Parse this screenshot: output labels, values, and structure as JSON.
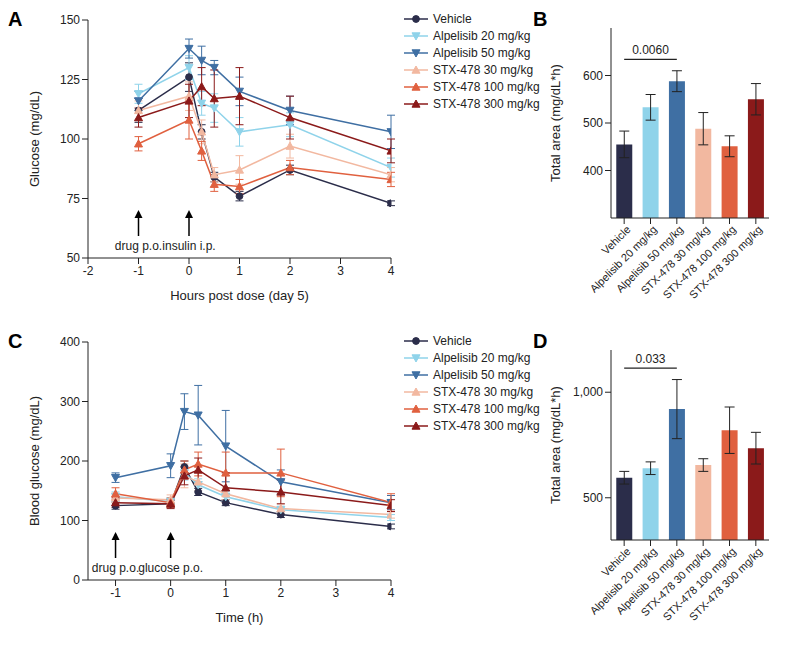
{
  "chart_data": [
    {
      "type": "line",
      "title": "A",
      "xlabel": "Hours post dose (day 5)",
      "ylabel": "Glucose (mg/dL)",
      "x": [
        -1,
        0,
        0.25,
        0.5,
        1,
        2,
        4
      ],
      "xlim": [
        -2,
        4
      ],
      "xticks": [
        -2,
        -1,
        0,
        1,
        2,
        3,
        4
      ],
      "ylim": [
        50,
        150
      ],
      "yticks": [
        50,
        75,
        100,
        125,
        150
      ],
      "legend": "right",
      "series": [
        {
          "name": "Vehicle",
          "color": "#2b2d4a",
          "marker": "circle",
          "values": [
            112,
            126,
            103,
            84,
            76,
            87,
            73
          ],
          "errors": [
            5,
            6,
            3,
            2,
            2,
            2,
            1
          ]
        },
        {
          "name": "Alpelisib 20 mg/kg",
          "color": "#8fd3ea",
          "marker": "triangle-down",
          "values": [
            119,
            130,
            115,
            113,
            103,
            106,
            88
          ],
          "errors": [
            4,
            5,
            5,
            6,
            6,
            5,
            4
          ]
        },
        {
          "name": "Alpelisib 50 mg/kg",
          "color": "#3f6fa3",
          "marker": "triangle-down",
          "values": [
            116,
            138,
            133,
            130,
            120,
            112,
            103
          ],
          "errors": [
            4,
            4,
            6,
            3,
            6,
            6,
            7
          ]
        },
        {
          "name": "STX-478 30 mg/kg",
          "color": "#f2b8a0",
          "marker": "triangle-up",
          "values": [
            112,
            118,
            103,
            85,
            87,
            97,
            85
          ],
          "errors": [
            4,
            6,
            5,
            3,
            6,
            5,
            3
          ]
        },
        {
          "name": "STX-478 100 mg/kg",
          "color": "#e0603f",
          "marker": "triangle-up",
          "values": [
            98,
            108,
            95,
            81,
            80,
            88,
            83
          ],
          "errors": [
            3,
            8,
            4,
            3,
            3,
            3,
            3
          ]
        },
        {
          "name": "STX-478 300 mg/kg",
          "color": "#8b1a1a",
          "marker": "triangle-up",
          "values": [
            109,
            116,
            122,
            117,
            118,
            109,
            95
          ],
          "errors": [
            4,
            7,
            8,
            12,
            12,
            9,
            5
          ]
        }
      ],
      "annotations": [
        {
          "text": "drug p.o.",
          "x": -1
        },
        {
          "text": "insulin i.p.",
          "x": 0
        }
      ]
    },
    {
      "type": "bar",
      "title": "B",
      "ylabel": "Total area (mg/dL*h)",
      "categories": [
        "Vehicle",
        "Alpelisib 20 mg/kg",
        "Alpelisib 50 mg/kg",
        "STX-478 30 mg/kg",
        "STX-478 100 mg/kg",
        "STX-478 300 mg/kg"
      ],
      "values": [
        455,
        533,
        588,
        488,
        451,
        550
      ],
      "errors": [
        28,
        27,
        22,
        34,
        22,
        33
      ],
      "colors": [
        "#2b2d4a",
        "#8fd3ea",
        "#3f6fa3",
        "#f2b8a0",
        "#e0603f",
        "#8b1a1a"
      ],
      "ylim": [
        300,
        700
      ],
      "yticks": [
        400,
        500,
        600
      ],
      "annotations": [
        {
          "text": "0.0060",
          "from": "Vehicle",
          "to": "Alpelisib 50 mg/kg"
        }
      ]
    },
    {
      "type": "line",
      "title": "C",
      "xlabel": "Time (h)",
      "ylabel": "Blood glucose (mg/dL)",
      "x": [
        -1,
        0,
        0.25,
        0.5,
        1,
        2,
        4
      ],
      "xlim": [
        -1.5,
        4
      ],
      "xticks": [
        -1,
        0,
        1,
        2,
        3,
        4
      ],
      "ylim": [
        0,
        400
      ],
      "yticks": [
        0,
        100,
        200,
        300,
        400
      ],
      "legend": "right",
      "series": [
        {
          "name": "Vehicle",
          "color": "#2b2d4a",
          "marker": "circle",
          "values": [
            125,
            128,
            190,
            148,
            130,
            110,
            90
          ],
          "errors": [
            6,
            6,
            10,
            6,
            5,
            5,
            4
          ]
        },
        {
          "name": "Alpelisib 20 mg/kg",
          "color": "#8fd3ea",
          "marker": "triangle-down",
          "values": [
            140,
            132,
            180,
            160,
            140,
            118,
            105
          ],
          "errors": [
            8,
            6,
            12,
            10,
            8,
            6,
            5
          ]
        },
        {
          "name": "Alpelisib 50 mg/kg",
          "color": "#3f6fa3",
          "marker": "triangle-down",
          "values": [
            172,
            192,
            283,
            277,
            225,
            165,
            130
          ],
          "errors": [
            8,
            20,
            30,
            50,
            60,
            20,
            12
          ]
        },
        {
          "name": "STX-478 30 mg/kg",
          "color": "#f2b8a0",
          "marker": "triangle-up",
          "values": [
            138,
            135,
            175,
            165,
            145,
            120,
            110
          ],
          "errors": [
            8,
            8,
            20,
            15,
            10,
            8,
            6
          ]
        },
        {
          "name": "STX-478 100 mg/kg",
          "color": "#e0603f",
          "marker": "triangle-up",
          "values": [
            145,
            130,
            185,
            195,
            180,
            180,
            130
          ],
          "errors": [
            10,
            8,
            15,
            20,
            35,
            40,
            15
          ]
        },
        {
          "name": "STX-478 300 mg/kg",
          "color": "#8b1a1a",
          "marker": "triangle-up",
          "values": [
            130,
            128,
            175,
            185,
            155,
            148,
            125
          ],
          "errors": [
            8,
            8,
            15,
            20,
            25,
            20,
            10
          ]
        }
      ],
      "annotations": [
        {
          "text": "drug p.o.",
          "x": -1
        },
        {
          "text": "glucose p.o.",
          "x": 0
        }
      ]
    },
    {
      "type": "bar",
      "title": "D",
      "ylabel": "Total area (mg/dL*h)",
      "categories": [
        "Vehicle",
        "Alpelisib 20 mg/kg",
        "Alpelisib 50 mg/kg",
        "STX-478 30 mg/kg",
        "STX-478 100 mg/kg",
        "STX-478 300 mg/kg"
      ],
      "values": [
        595,
        640,
        920,
        655,
        820,
        735
      ],
      "errors": [
        30,
        30,
        140,
        30,
        110,
        75
      ],
      "colors": [
        "#2b2d4a",
        "#8fd3ea",
        "#3f6fa3",
        "#f2b8a0",
        "#e0603f",
        "#8b1a1a"
      ],
      "ylim": [
        300,
        1200
      ],
      "yticks": [
        500,
        {
          "value": 1000,
          "label": "1,000"
        }
      ],
      "annotations": [
        {
          "text": "0.033",
          "from": "Vehicle",
          "to": "Alpelisib 50 mg/kg"
        }
      ]
    }
  ]
}
